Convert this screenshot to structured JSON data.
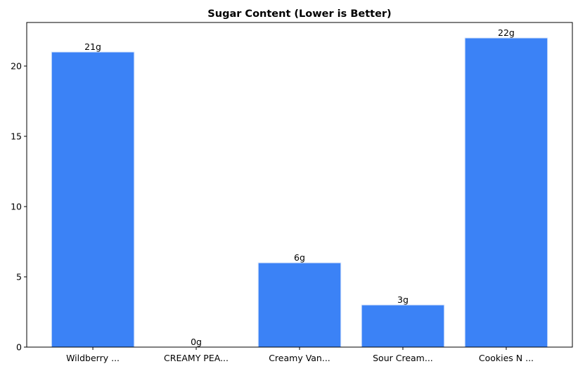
{
  "chart_data": {
    "type": "bar",
    "title": "Sugar Content (Lower is Better)",
    "xlabel": "",
    "ylabel": "",
    "categories": [
      "Wildberry ...",
      "CREAMY PEA...",
      "Creamy Van...",
      "Sour Cream...",
      "Cookies N ..."
    ],
    "values": [
      21,
      0,
      6,
      3,
      22
    ],
    "data_labels": [
      "21g",
      "0g",
      "6g",
      "3g",
      "22g"
    ],
    "ylim": [
      0,
      23.1
    ],
    "yticks": [
      0,
      5,
      10,
      15,
      20
    ],
    "grid": false,
    "bar_color": "#3b82f6",
    "bar_edge_color": "#dbe7fb"
  }
}
